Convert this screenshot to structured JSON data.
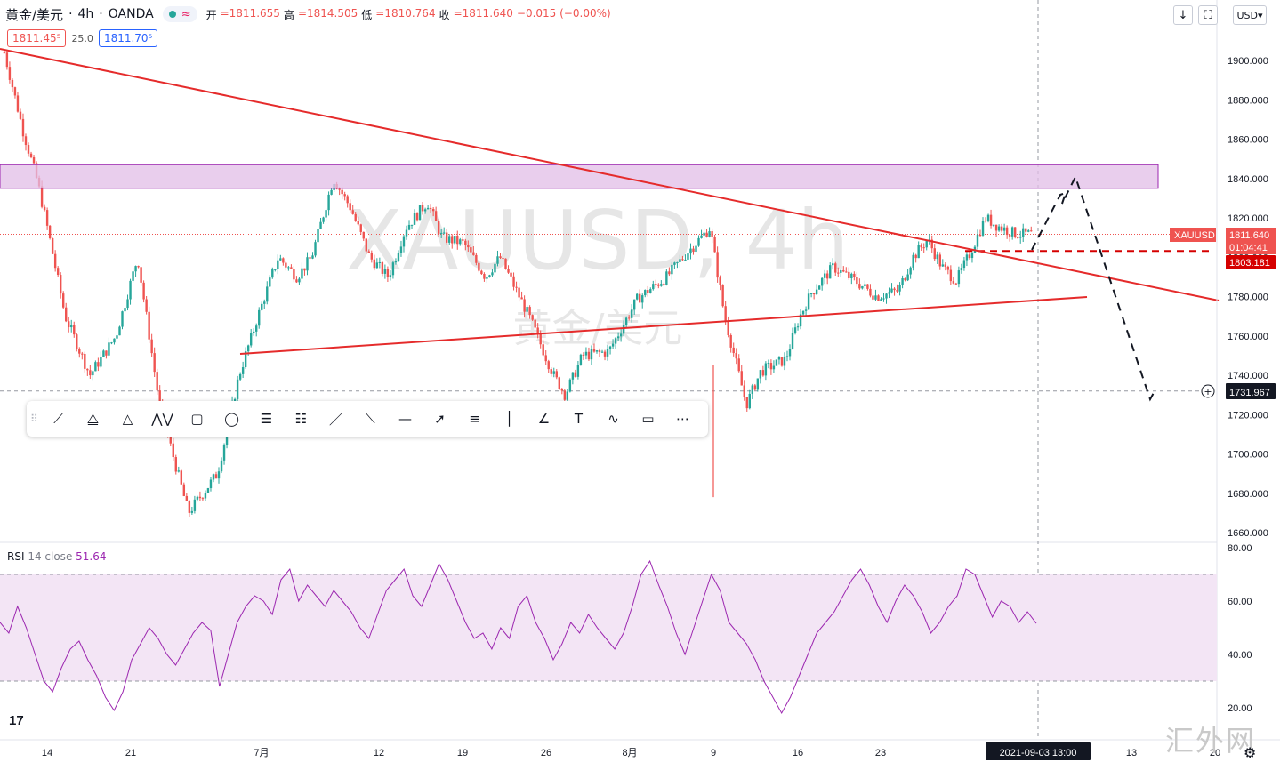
{
  "header": {
    "symbol": "黄金/美元",
    "interval": "4h",
    "broker": "OANDA",
    "approx_symbol": "≈",
    "open_label": "开",
    "open": "=1811.655",
    "high_label": "高",
    "high": "=1814.505",
    "low_label": "低",
    "low": "=1810.764",
    "close_label": "收",
    "close": "=1811.640",
    "change": "−0.015 (−0.00%)"
  },
  "quote_boxes": {
    "sell": "1811.45⁵",
    "spread": "25.0",
    "buy": "1811.70⁵"
  },
  "currency_button": "USD",
  "watermark": {
    "line1": "XAUUSD, 4h",
    "line2": "黄金/美元"
  },
  "chart_data": {
    "type": "candlestick",
    "symbol": "XAUUSD",
    "interval": "4h",
    "yticks": [
      "1900.000",
      "1880.000",
      "1860.000",
      "1840.000",
      "1820.000",
      "1800.000",
      "1780.000",
      "1760.000",
      "1740.000",
      "1720.000",
      "1700.000",
      "1680.000",
      "1660.000"
    ],
    "xticks": [
      "14",
      "21",
      "7月",
      "12",
      "19",
      "26",
      "8月",
      "9",
      "16",
      "23",
      "13",
      "20"
    ],
    "x_cursor_label": "2021-09-03  13:00",
    "price_labels": [
      {
        "text": "XAUUSD",
        "color": "#ef5350"
      },
      {
        "text": "1811.640",
        "color": "#ef5350"
      },
      {
        "text": "01:04:41",
        "color": "#ef5350"
      },
      {
        "text": "1803.181",
        "color": "#d50000"
      },
      {
        "text": "1731.967",
        "color": "#131722"
      }
    ],
    "current_price": 1811.64,
    "zone": [
      1835,
      1847
    ],
    "horizontal_lines": [
      1803.181,
      1731.967
    ],
    "path_points": [
      [
        1883,
        1904
      ],
      [
        1896,
        1864
      ],
      [
        1906,
        1838
      ],
      [
        1913,
        1814
      ],
      [
        1925,
        1770
      ],
      [
        1942,
        1740
      ],
      [
        1960,
        1760
      ],
      [
        1975,
        1800
      ],
      [
        1983,
        1760
      ],
      [
        1990,
        1725
      ],
      [
        2010,
        1670
      ],
      [
        2030,
        1690
      ],
      [
        2045,
        1740
      ],
      [
        2058,
        1770
      ],
      [
        2072,
        1800
      ],
      [
        2085,
        1790
      ],
      [
        2095,
        1800
      ],
      [
        2110,
        1840
      ],
      [
        2122,
        1825
      ],
      [
        2135,
        1800
      ],
      [
        2148,
        1790
      ],
      [
        2160,
        1815
      ],
      [
        2175,
        1828
      ],
      [
        2185,
        1810
      ],
      [
        2200,
        1807
      ],
      [
        2215,
        1790
      ],
      [
        2225,
        1800
      ],
      [
        2245,
        1770
      ],
      [
        2262,
        1740
      ],
      [
        2270,
        1730
      ],
      [
        2282,
        1750
      ],
      [
        2300,
        1752
      ],
      [
        2320,
        1779
      ],
      [
        2340,
        1790
      ],
      [
        2355,
        1803
      ],
      [
        2370,
        1815
      ],
      [
        2380,
        1770
      ],
      [
        2395,
        1725
      ],
      [
        2405,
        1742
      ],
      [
        2422,
        1748
      ],
      [
        2432,
        1770
      ],
      [
        2440,
        1782
      ],
      [
        2455,
        1795
      ],
      [
        2470,
        1788
      ],
      [
        2485,
        1780
      ],
      [
        2500,
        1783
      ],
      [
        2510,
        1800
      ],
      [
        2520,
        1809
      ],
      [
        2530,
        1795
      ],
      [
        2540,
        1788
      ],
      [
        2550,
        1803
      ],
      [
        2560,
        1820
      ],
      [
        2568,
        1816
      ],
      [
        2580,
        1812
      ],
      [
        2592,
        1811.6
      ]
    ],
    "candle_low_spike": 1678,
    "rsi": {
      "label": "RSI",
      "params": "14 close",
      "value": "51.64",
      "yticks": [
        "80.00",
        "60.00",
        "40.00",
        "20.00"
      ],
      "band": [
        30,
        70
      ],
      "series": [
        52,
        48,
        58,
        50,
        40,
        30,
        26,
        35,
        42,
        45,
        38,
        32,
        24,
        19,
        26,
        38,
        44,
        50,
        46,
        40,
        36,
        42,
        48,
        52,
        49,
        28,
        40,
        52,
        58,
        62,
        60,
        55,
        68,
        72,
        60,
        66,
        62,
        58,
        64,
        60,
        56,
        50,
        46,
        55,
        64,
        68,
        72,
        62,
        58,
        66,
        74,
        68,
        60,
        52,
        46,
        48,
        42,
        50,
        46,
        58,
        62,
        52,
        46,
        38,
        44,
        52,
        48,
        55,
        50,
        46,
        42,
        48,
        58,
        70,
        75,
        66,
        58,
        48,
        40,
        50,
        60,
        70,
        64,
        52,
        48,
        44,
        38,
        30,
        24,
        18,
        24,
        32,
        40,
        48,
        52,
        56,
        62,
        68,
        72,
        66,
        58,
        52,
        60,
        66,
        62,
        56,
        48,
        52,
        58,
        62,
        72,
        70,
        62,
        54,
        60,
        58,
        52,
        56,
        51.64
      ]
    }
  },
  "drawing_tools": [
    "trend-line-icon",
    "channel-icon",
    "triangle-icon",
    "pattern-icon",
    "rectangle-icon",
    "ellipse-icon",
    "fib-retracement-icon",
    "fib-fan-icon",
    "ray-icon",
    "extended-line-icon",
    "horizontal-line-icon",
    "arrow-icon",
    "parallel-lines-icon",
    "vertical-line-icon",
    "angle-icon",
    "text-icon",
    "elliott-wave-icon",
    "callout-icon",
    "long-short-icon"
  ],
  "rsi_label": {
    "name": "RSI",
    "params": "14 close",
    "value": "51.64"
  },
  "bottom": {
    "logo": "17",
    "watermark": "汇外网"
  },
  "colors": {
    "up": "#26a69a",
    "down": "#ef5350",
    "line": "#e52b2b",
    "zone_fill": "#e1bee7",
    "zone_border": "#9c27b0",
    "rsi": "#9c27b0",
    "rsi_band": "#f3e5f5"
  }
}
